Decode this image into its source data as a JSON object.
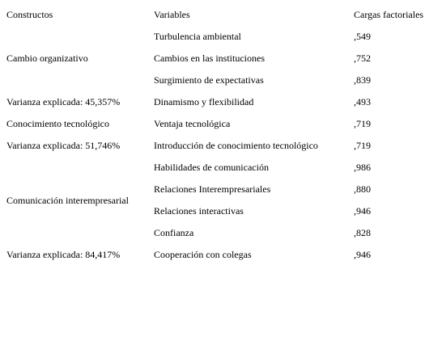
{
  "table": {
    "header": [
      "Constructos",
      "Variables",
      "Cargas factoriales"
    ],
    "groups": [
      {
        "construct": "Cambio organizativo",
        "variance": "Varianza explicada: 45,357%",
        "rows": [
          {
            "variable": "Turbulencia ambiental",
            "loading": ",549"
          },
          {
            "variable": "Cambios en las instituciones",
            "loading": ",752"
          },
          {
            "variable": "Surgimiento de expectativas",
            "loading": ",839"
          },
          {
            "variable": "Dinamismo y flexibilidad",
            "loading": ",493"
          }
        ]
      },
      {
        "construct": "Conocimiento tecnológico",
        "variance": "Varianza explicada: 51,746%",
        "rows": [
          {
            "variable": "Ventaja tecnológica",
            "loading": ",719"
          },
          {
            "variable": "Introducción de conocimiento tecnológico",
            "loading": ",719"
          }
        ]
      },
      {
        "construct": "Comunicación interempresarial",
        "variance": "Varianza explicada: 84,417%",
        "rows": [
          {
            "variable": "Habilidades de comunicación",
            "loading": ",986"
          },
          {
            "variable": "Relaciones Interempresariales",
            "loading": ",880"
          },
          {
            "variable": "Relaciones interactivas",
            "loading": ",946"
          },
          {
            "variable": "Confianza",
            "loading": ",828"
          },
          {
            "variable": "Cooperación con colegas",
            "loading": ",946"
          }
        ]
      }
    ]
  }
}
